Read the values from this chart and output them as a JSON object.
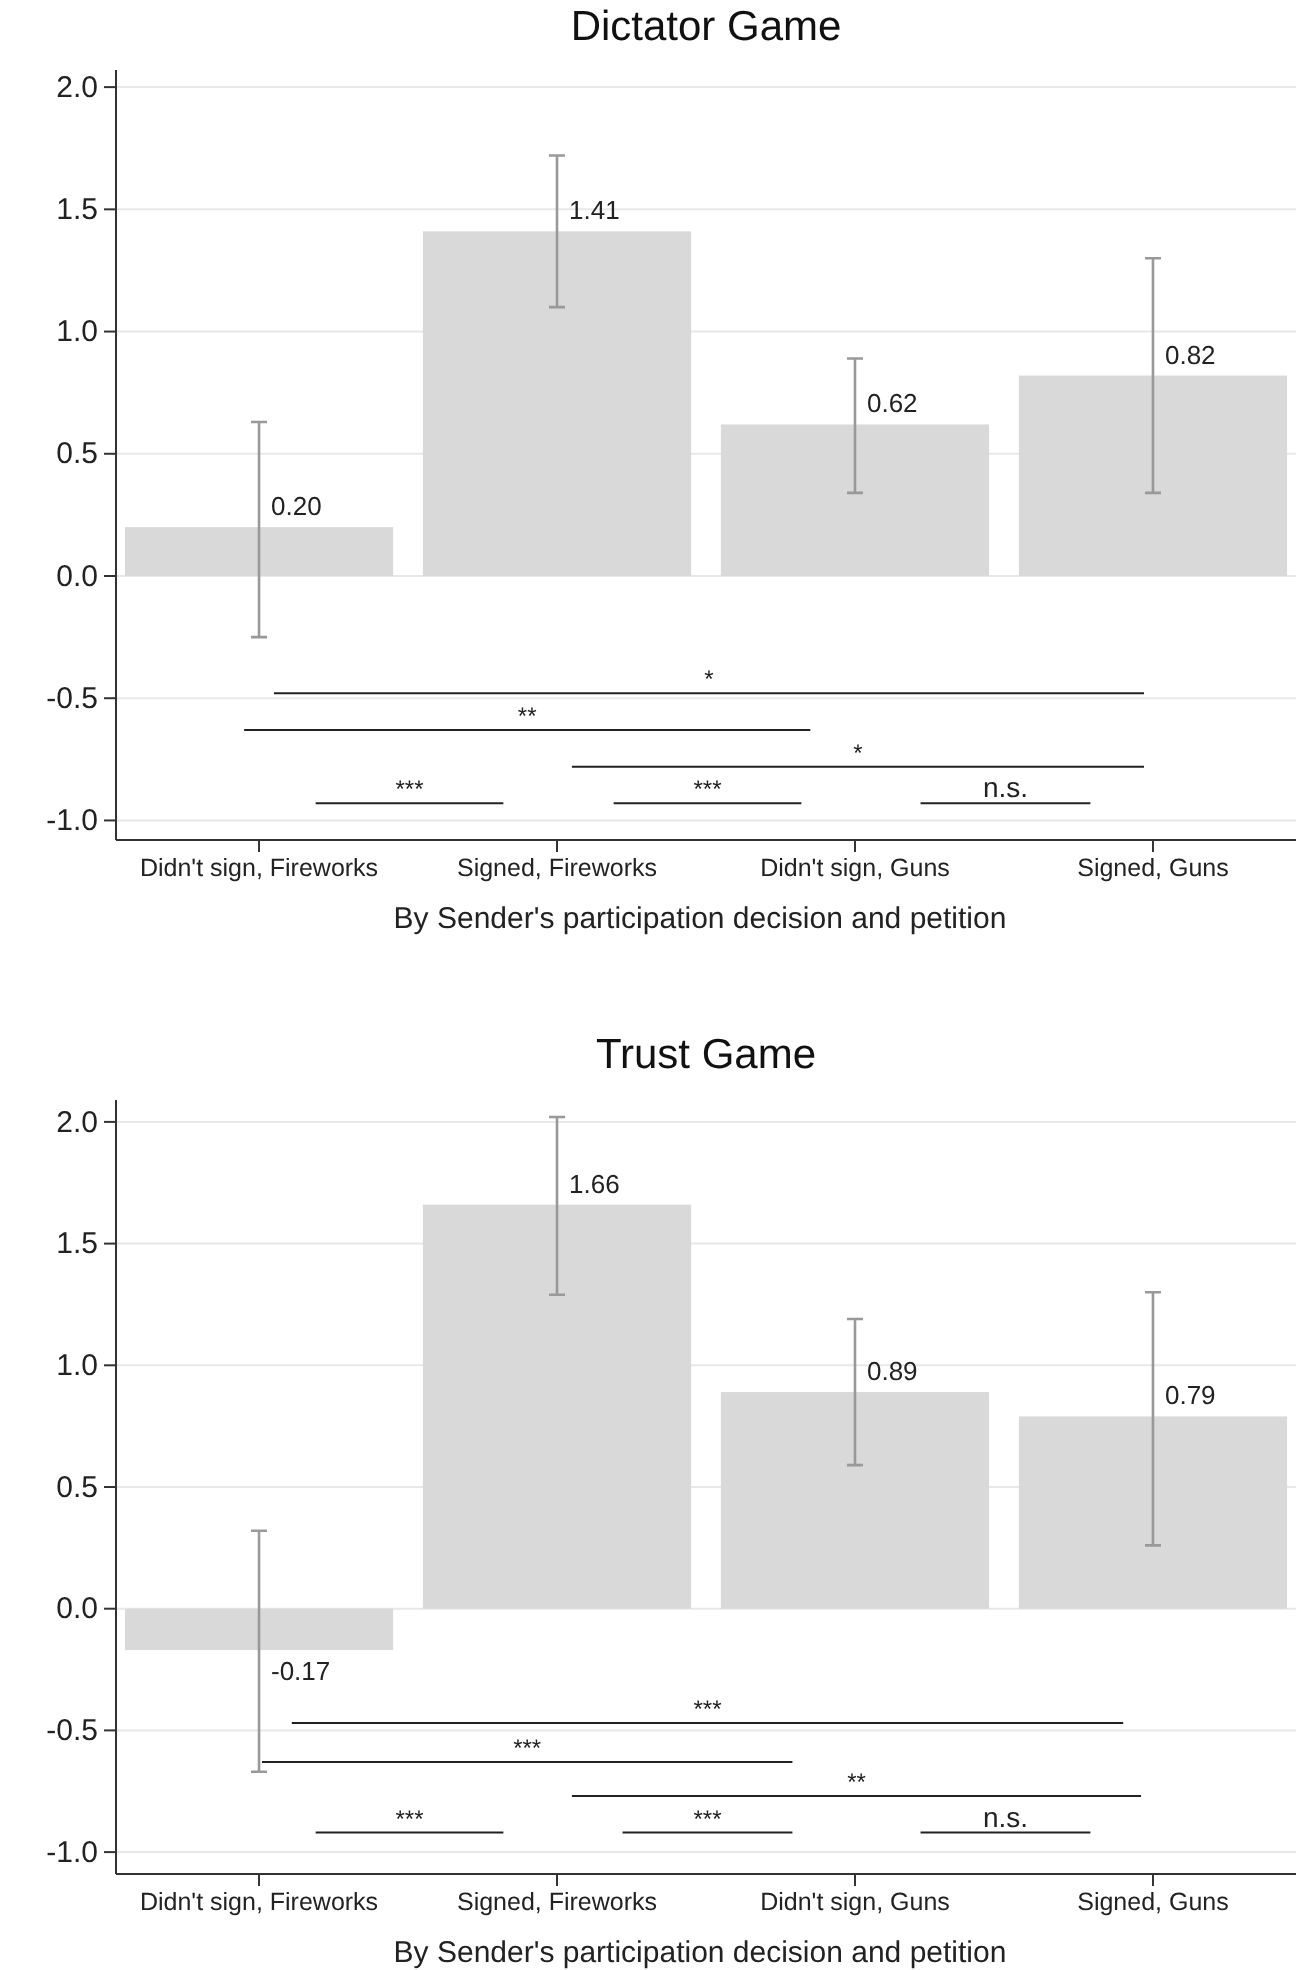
{
  "chart_data": [
    {
      "type": "bar",
      "title": "Dictator Game",
      "xlabel": "By Sender's participation decision and petition",
      "categories": [
        "Didn't sign, Fireworks",
        "Signed, Fireworks",
        "Didn't sign, Guns",
        "Signed, Guns"
      ],
      "values": [
        0.2,
        1.41,
        0.62,
        0.82
      ],
      "value_labels": [
        "0.20",
        "1.41",
        "0.62",
        "0.82"
      ],
      "errors": [
        [
          -0.25,
          0.63
        ],
        [
          1.1,
          1.72
        ],
        [
          0.34,
          0.89
        ],
        [
          0.34,
          1.3
        ]
      ],
      "color": "#d9d9d9",
      "ylim": [
        -1.08,
        2.07
      ],
      "yticks": [
        {
          "value": -1,
          "label": "-1.0"
        },
        {
          "value": -0.5,
          "label": "-0.5"
        },
        {
          "value": 0,
          "label": "0.0"
        },
        {
          "value": 0.5,
          "label": "0.5"
        },
        {
          "value": 1,
          "label": "1.0"
        },
        {
          "value": 1.5,
          "label": "1.5"
        },
        {
          "value": 2,
          "label": "2.0"
        }
      ],
      "grid": "y",
      "annotations": [
        "*",
        "**",
        "*",
        "***",
        "***",
        "n.s."
      ]
    },
    {
      "type": "bar",
      "title": "Trust Game",
      "xlabel": "By Sender's participation decision and petition",
      "categories": [
        "Didn't sign, Fireworks",
        "Signed, Fireworks",
        "Didn't sign, Guns",
        "Signed, Guns"
      ],
      "values": [
        -0.17,
        1.66,
        0.89,
        0.79
      ],
      "value_labels": [
        "-0.17",
        "1.66",
        "0.89",
        "0.79"
      ],
      "errors": [
        [
          -0.67,
          0.32
        ],
        [
          1.29,
          2.02
        ],
        [
          0.59,
          1.19
        ],
        [
          0.26,
          1.3
        ]
      ],
      "color": "#d9d9d9",
      "ylim": [
        -1.09,
        2.09
      ],
      "yticks": [
        {
          "value": -1,
          "label": "-1.0"
        },
        {
          "value": -0.5,
          "label": "-0.5"
        },
        {
          "value": 0,
          "label": "0.0"
        },
        {
          "value": 0.5,
          "label": "0.5"
        },
        {
          "value": 1,
          "label": "1.0"
        },
        {
          "value": 1.5,
          "label": "1.5"
        },
        {
          "value": 2,
          "label": "2.0"
        }
      ],
      "grid": "y",
      "annotations": [
        "***",
        "***",
        "**",
        "***",
        "***",
        "n.s."
      ]
    }
  ]
}
